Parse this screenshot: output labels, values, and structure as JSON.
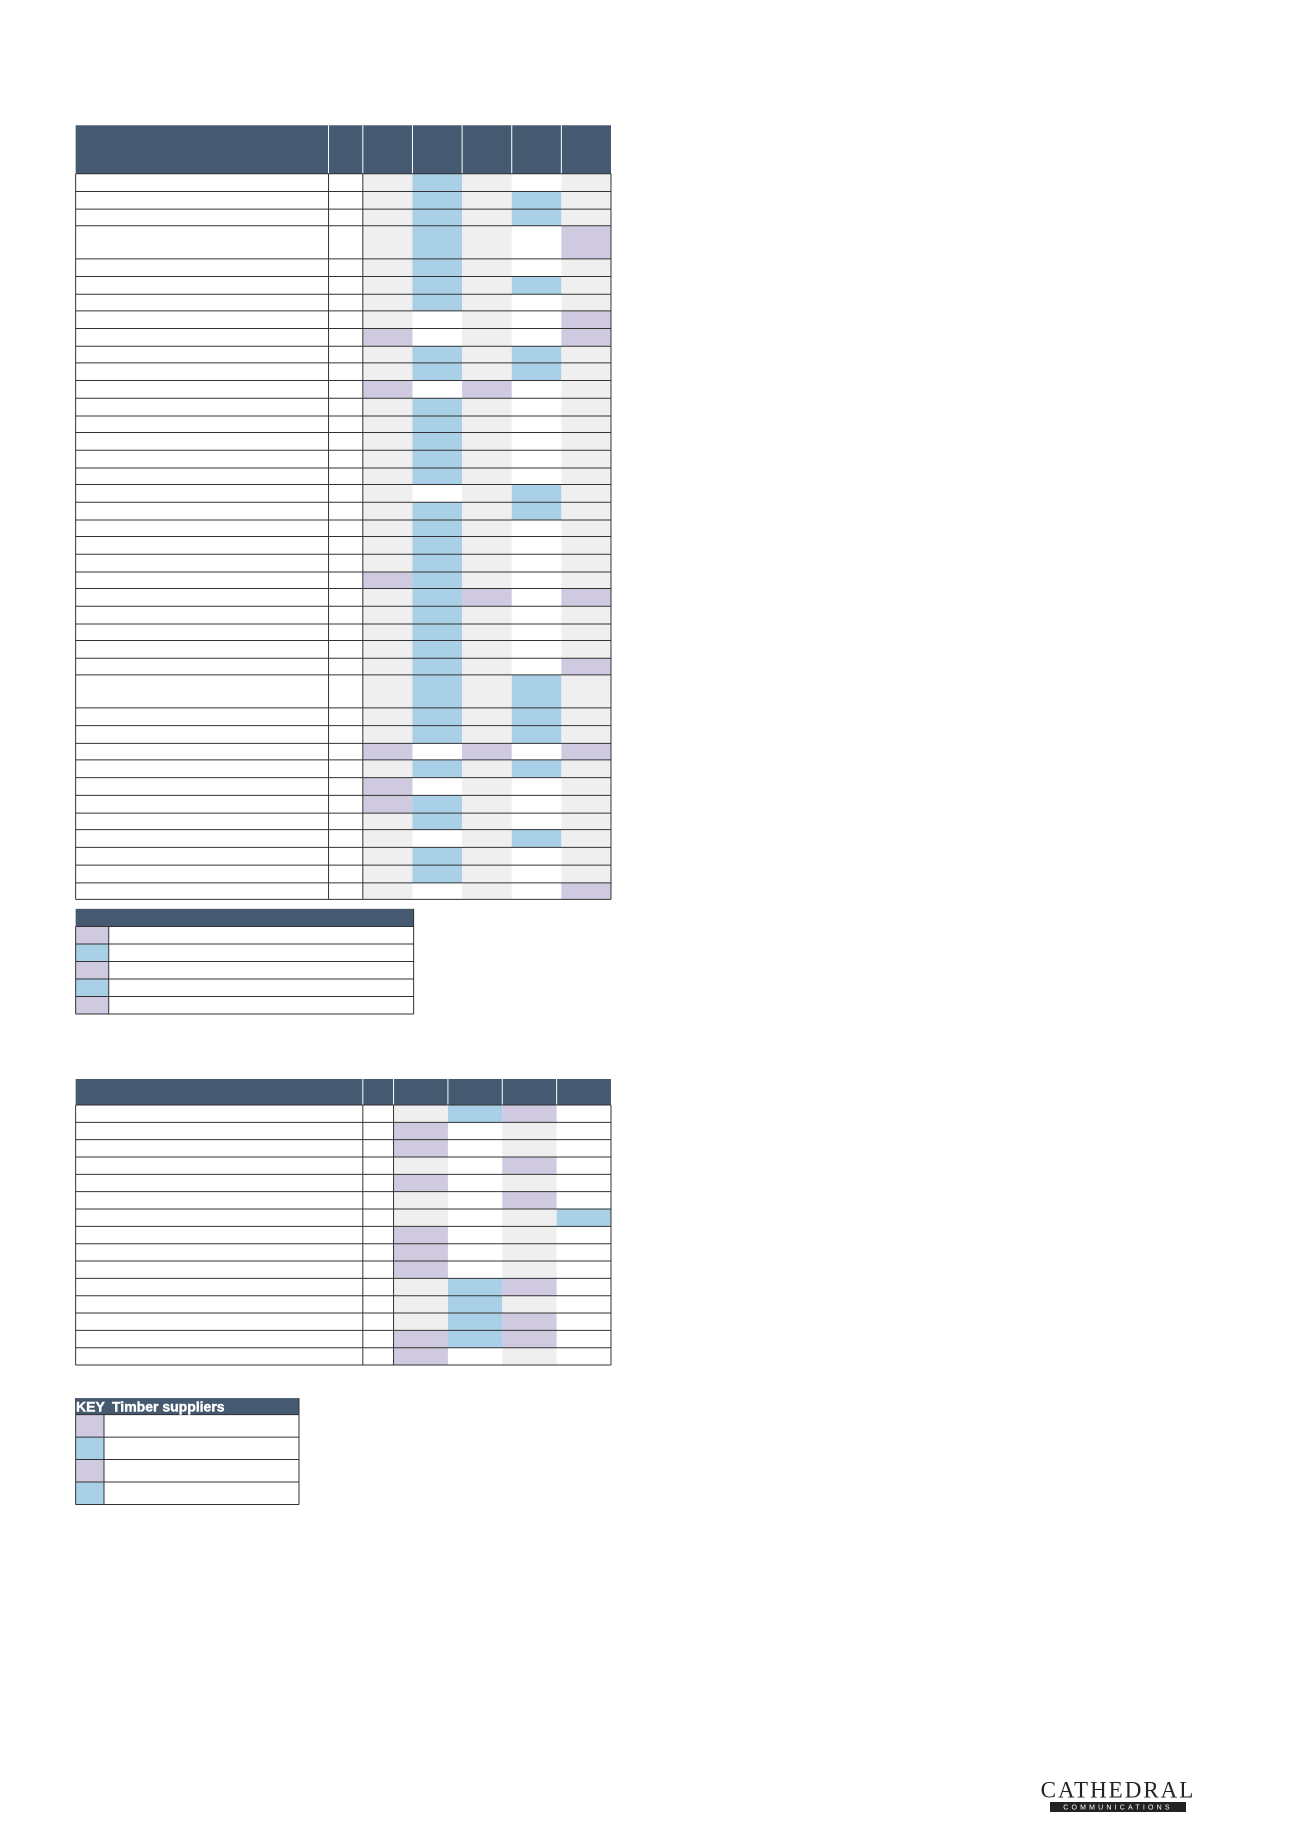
{
  "key_table_2": {
    "key": "KEY",
    "title": "Timber suppliers"
  },
  "logo": {
    "name": "CATHEDRAL",
    "tagline": "COMMUNICATIONS"
  }
}
